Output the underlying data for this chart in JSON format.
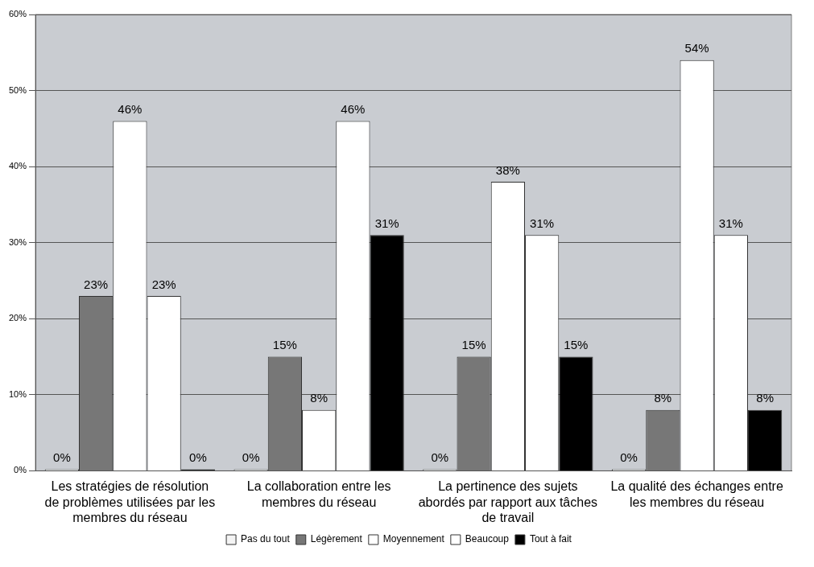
{
  "chart_data": {
    "type": "bar",
    "categories": [
      "Les stratégies de résolution de problèmes utilisées par les membres du réseau",
      "La collaboration entre les membres du réseau",
      "La pertinence des sujets abordés par rapport aux tâches de travail",
      "La qualité des échanges entre les membres du réseau"
    ],
    "series": [
      {
        "name": "Pas du tout",
        "color": "#f4f4f4",
        "values": [
          0,
          0,
          0,
          0
        ],
        "value_labels": [
          "0%",
          "0%",
          "0%",
          "0%"
        ]
      },
      {
        "name": "Légèrement",
        "color": "#777777",
        "values": [
          23,
          15,
          15,
          8
        ],
        "value_labels": [
          "23%",
          "15%",
          "15%",
          "8%"
        ]
      },
      {
        "name": "Moyennement",
        "color": "#ffffff",
        "values": [
          46,
          8,
          38,
          54
        ],
        "value_labels": [
          "46%",
          "8%",
          "38%",
          "54%"
        ]
      },
      {
        "name": "Beaucoup",
        "color": "#ffffff",
        "values": [
          23,
          46,
          31,
          31
        ],
        "value_labels": [
          "23%",
          "46%",
          "31%",
          "31%"
        ]
      },
      {
        "name": "Tout à fait",
        "color": "#000000",
        "values": [
          0,
          31,
          15,
          8
        ],
        "value_labels": [
          "0%",
          "31%",
          "15%",
          "8%"
        ]
      }
    ],
    "ylim": [
      0,
      60
    ],
    "yticks": [
      {
        "value": 0,
        "label": "0%"
      },
      {
        "value": 10,
        "label": "10%"
      },
      {
        "value": 20,
        "label": "20%"
      },
      {
        "value": 30,
        "label": "30%"
      },
      {
        "value": 40,
        "label": "40%"
      },
      {
        "value": 50,
        "label": "50%"
      },
      {
        "value": 60,
        "label": "60%"
      }
    ],
    "grid": "y",
    "legend": "bottom"
  }
}
